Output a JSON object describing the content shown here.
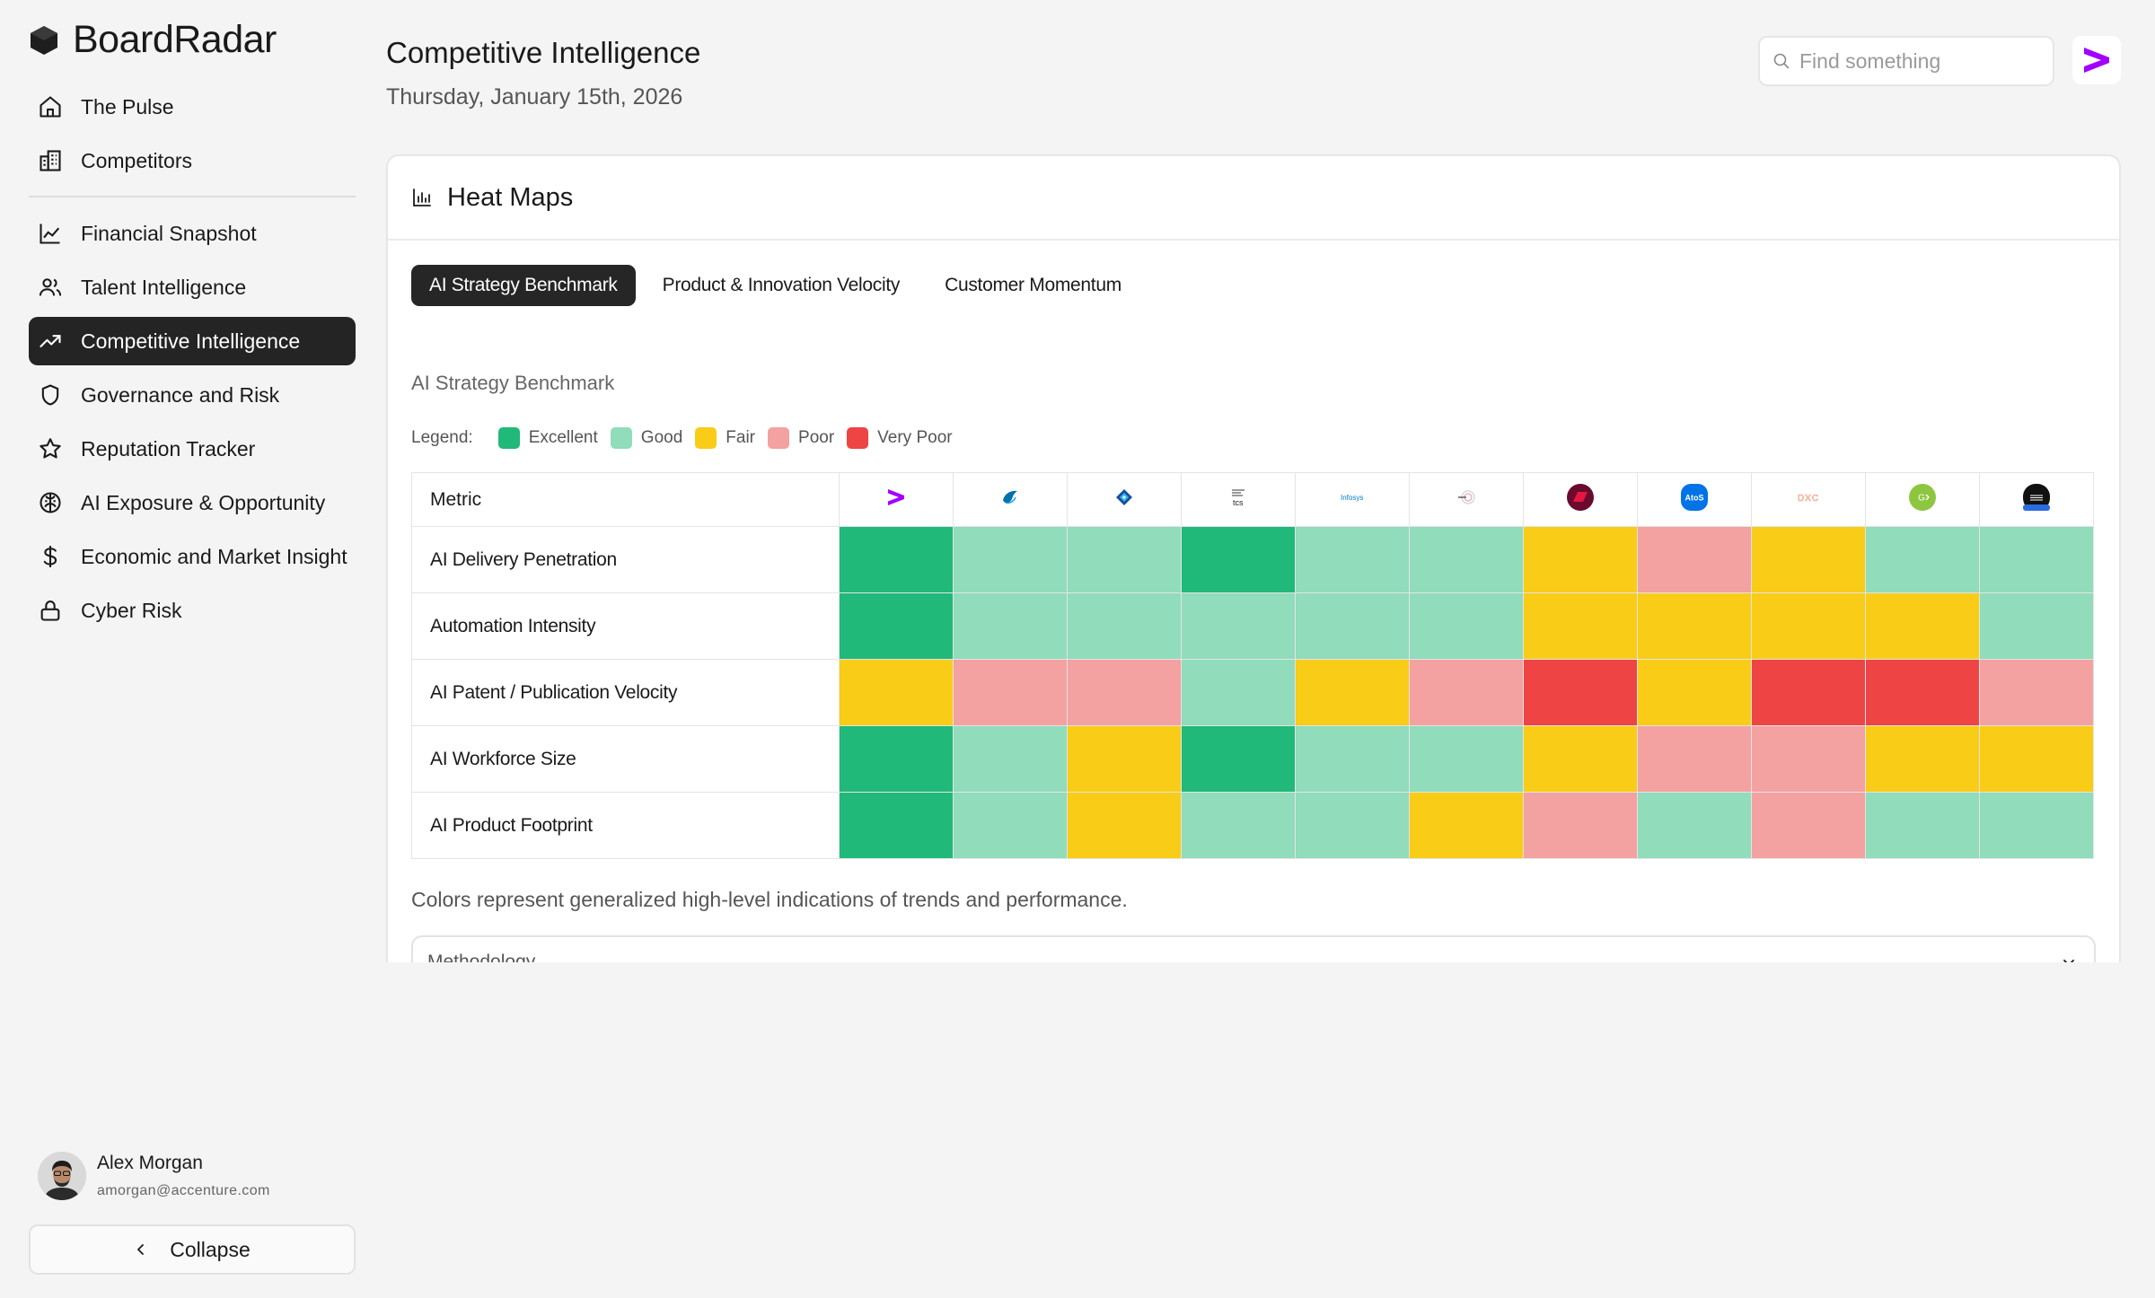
{
  "app": {
    "name": "BoardRadar"
  },
  "sidebar": {
    "items": [
      {
        "label": "The Pulse",
        "icon": "home-icon",
        "active": false
      },
      {
        "label": "Competitors",
        "icon": "building-icon",
        "active": false
      },
      {
        "label": "Financial Snapshot",
        "icon": "line-chart-icon",
        "active": false
      },
      {
        "label": "Talent Intelligence",
        "icon": "users-icon",
        "active": false
      },
      {
        "label": "Competitive Intelligence",
        "icon": "trending-up-icon",
        "active": true
      },
      {
        "label": "Governance and Risk",
        "icon": "shield-icon",
        "active": false
      },
      {
        "label": "Reputation Tracker",
        "icon": "star-icon",
        "active": false
      },
      {
        "label": "AI Exposure & Opportunity",
        "icon": "brain-icon",
        "active": false
      },
      {
        "label": "Economic and Market Insight",
        "icon": "dollar-icon",
        "active": false
      },
      {
        "label": "Cyber Risk",
        "icon": "lock-icon",
        "active": false
      }
    ],
    "user": {
      "name": "Alex Morgan",
      "email": "amorgan@accenture.com"
    },
    "collapse_label": "Collapse"
  },
  "header": {
    "title": "Competitive Intelligence",
    "date": "Thursday, January 15th, 2026",
    "search_placeholder": "Find something"
  },
  "card": {
    "title": "Heat Maps",
    "tabs": [
      {
        "label": "AI Strategy Benchmark",
        "active": true
      },
      {
        "label": "Product & Innovation Velocity",
        "active": false
      },
      {
        "label": "Customer Momentum",
        "active": false
      }
    ],
    "section_title": "AI Strategy Benchmark",
    "legend_label": "Legend:",
    "legend": [
      {
        "label": "Excellent",
        "color": "#20b97a"
      },
      {
        "label": "Good",
        "color": "#90dcbb"
      },
      {
        "label": "Fair",
        "color": "#f9cc17"
      },
      {
        "label": "Poor",
        "color": "#f4a1a1"
      },
      {
        "label": "Very Poor",
        "color": "#ee4444"
      }
    ],
    "metric_header": "Metric",
    "company_logos": [
      "accenture-logo-icon",
      "capgemini-logo-icon",
      "cognizant-logo-icon",
      "tcs-logo-icon",
      "infosys-logo-icon",
      "wipro-logo-icon",
      "hcl-logo-icon",
      "atos-logo-icon",
      "dxc-logo-icon",
      "genpact-logo-icon",
      "ibm-logo-icon"
    ],
    "logo_texts": {
      "tcs": "tcs",
      "infosys": "Infosys",
      "atos": "AtoS",
      "dxc": "DXC",
      "genpact": "G"
    },
    "rows": [
      {
        "metric": "AI Delivery Penetration",
        "ratings": [
          "Excellent",
          "Good",
          "Good",
          "Excellent",
          "Good",
          "Good",
          "Fair",
          "Poor",
          "Fair",
          "Good",
          "Good"
        ]
      },
      {
        "metric": "Automation Intensity",
        "ratings": [
          "Excellent",
          "Good",
          "Good",
          "Good",
          "Good",
          "Good",
          "Fair",
          "Fair",
          "Fair",
          "Fair",
          "Good"
        ]
      },
      {
        "metric": "AI Patent / Publication Velocity",
        "ratings": [
          "Fair",
          "Poor",
          "Poor",
          "Good",
          "Fair",
          "Poor",
          "Very Poor",
          "Fair",
          "Very Poor",
          "Very Poor",
          "Poor"
        ]
      },
      {
        "metric": "AI Workforce Size",
        "ratings": [
          "Excellent",
          "Good",
          "Fair",
          "Excellent",
          "Good",
          "Good",
          "Fair",
          "Poor",
          "Poor",
          "Fair",
          "Fair"
        ]
      },
      {
        "metric": "AI Product Footprint",
        "ratings": [
          "Excellent",
          "Good",
          "Fair",
          "Good",
          "Good",
          "Fair",
          "Poor",
          "Good",
          "Poor",
          "Good",
          "Good"
        ]
      }
    ],
    "footnote": "Colors represent generalized high-level indications of trends and performance.",
    "methodology_label": "Methodology"
  }
}
